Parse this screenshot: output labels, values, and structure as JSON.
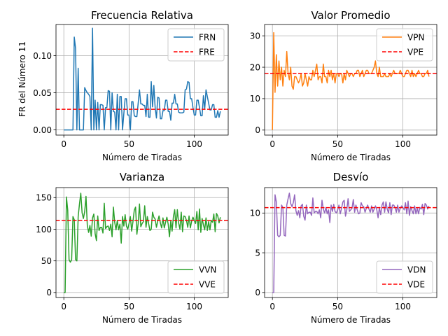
{
  "chart_data": [
    {
      "type": "line",
      "title": "Frecuencia Relativa",
      "xlabel": "Número de Tiradas",
      "ylabel": "FR del Número 11",
      "xlim": [
        -6,
        126
      ],
      "ylim": [
        -0.007,
        0.142
      ],
      "xticks": [
        0,
        50,
        100
      ],
      "yticks": [
        0.0,
        0.05,
        0.1
      ],
      "ytick_labels": [
        "0.00",
        "0.05",
        "0.10"
      ],
      "grid": true,
      "legend_position": "top-right",
      "series": [
        {
          "name": "FRN",
          "color": "#1f77b4",
          "style": "solid",
          "x": [
            0,
            1,
            2,
            3,
            4,
            5,
            6,
            7,
            8,
            9,
            10,
            11,
            12,
            13,
            14,
            15,
            16,
            17,
            18,
            19,
            20,
            21,
            22,
            23,
            24,
            25,
            26,
            27,
            28,
            29,
            30,
            31,
            32,
            33,
            34,
            35,
            36,
            37,
            38,
            39,
            40,
            41,
            42,
            43,
            44,
            45,
            46,
            47,
            48,
            49,
            50,
            51,
            52,
            53,
            54,
            55,
            56,
            57,
            58,
            59,
            60,
            61,
            62,
            63,
            64,
            65,
            66,
            67,
            68,
            69,
            70,
            71,
            72,
            73,
            74,
            75,
            76,
            77,
            78,
            79,
            80,
            81,
            82,
            83,
            84,
            85,
            86,
            87,
            88,
            89,
            90,
            91,
            92,
            93,
            94,
            95,
            96,
            97,
            98,
            99,
            100,
            101,
            102,
            103,
            104,
            105,
            106,
            107,
            108,
            109,
            110,
            111,
            112,
            113,
            114,
            115,
            116,
            117,
            118,
            119,
            120
          ],
          "values": [
            0,
            0,
            0,
            0,
            0,
            0,
            0,
            0,
            0.125,
            0.11,
            0,
            0.083,
            0,
            0,
            0,
            0,
            0.057,
            0.053,
            0.05,
            0.048,
            0.045,
            0,
            0.137,
            0,
            0.04,
            0,
            0.037,
            0,
            0.034,
            0.034,
            0.033,
            0,
            0.03,
            0.03,
            0.053,
            0.052,
            0,
            0.05,
            0.025,
            0.024,
            0,
            0.048,
            0,
            0.045,
            0.045,
            0,
            0.022,
            0.042,
            0.042,
            0.02,
            0.02,
            0,
            0.038,
            0.038,
            0.019,
            0.018,
            0.018,
            0.036,
            0.054,
            0.035,
            0.035,
            0.033,
            0.033,
            0.018,
            0.048,
            0.017,
            0.017,
            0.065,
            0.031,
            0.06,
            0.03,
            0.016,
            0.044,
            0.043,
            0.015,
            0.015,
            0.026,
            0.026,
            0.04,
            0.04,
            0.025,
            0.025,
            0.013,
            0.036,
            0.036,
            0.048,
            0.035,
            0.035,
            0.024,
            0.023,
            0.023,
            0.023,
            0.024,
            0.054,
            0.055,
            0.065,
            0.064,
            0.042,
            0.042,
            0.03,
            0.02,
            0.02,
            0.04,
            0.04,
            0.03,
            0.019,
            0.019,
            0.046,
            0.028,
            0.054,
            0.045,
            0.036,
            0.027,
            0.027,
            0.034,
            0.034,
            0.017,
            0.017,
            0.026,
            0.017,
            0.025
          ],
          "hline": null
        },
        {
          "name": "FRE",
          "color": "#ff0000",
          "style": "dashed",
          "hline": 0.0278
        }
      ]
    },
    {
      "type": "line",
      "title": "Valor Promedio",
      "xlabel": "Número de Tiradas",
      "ylabel": "",
      "xlim": [
        -6,
        126
      ],
      "ylim": [
        -1.6,
        33.6
      ],
      "xticks": [
        0,
        50,
        100
      ],
      "yticks": [
        0,
        10,
        20,
        30
      ],
      "ytick_labels": [
        "0",
        "10",
        "20",
        "30"
      ],
      "grid": true,
      "legend_position": "top-right",
      "series": [
        {
          "name": "VPN",
          "color": "#ff7f0e",
          "style": "solid",
          "x": [
            0,
            1,
            2,
            3,
            4,
            5,
            6,
            7,
            8,
            9,
            10,
            11,
            12,
            13,
            14,
            15,
            16,
            17,
            18,
            19,
            20,
            21,
            22,
            23,
            24,
            25,
            26,
            27,
            28,
            29,
            30,
            31,
            32,
            33,
            34,
            35,
            36,
            37,
            38,
            39,
            40,
            41,
            42,
            43,
            44,
            45,
            46,
            47,
            48,
            49,
            50,
            51,
            52,
            53,
            54,
            55,
            56,
            57,
            58,
            59,
            60,
            61,
            62,
            63,
            64,
            65,
            66,
            67,
            68,
            69,
            70,
            71,
            72,
            73,
            74,
            75,
            76,
            77,
            78,
            79,
            80,
            81,
            82,
            83,
            84,
            85,
            86,
            87,
            88,
            89,
            90,
            91,
            92,
            93,
            94,
            95,
            96,
            97,
            98,
            99,
            100,
            101,
            102,
            103,
            104,
            105,
            106,
            107,
            108,
            109,
            110,
            111,
            112,
            113,
            114,
            115,
            116,
            117,
            118,
            119,
            120
          ],
          "values": [
            0,
            31,
            12,
            24,
            14,
            22,
            16,
            20,
            14,
            19,
            17,
            25,
            18,
            16,
            20,
            14,
            13,
            17,
            17,
            16,
            15,
            16,
            18,
            14,
            15,
            18,
            16,
            14,
            17,
            16,
            16,
            19,
            17,
            19,
            21,
            16,
            17,
            17,
            15,
            21,
            17,
            17,
            15,
            19,
            17,
            19,
            16,
            18,
            15,
            18,
            18,
            17,
            18,
            18,
            15,
            18,
            16,
            19,
            18,
            17,
            18,
            18,
            17,
            18,
            18,
            19,
            19,
            17,
            18,
            19,
            17,
            18,
            19,
            19,
            18,
            18,
            18,
            19,
            20,
            22,
            18,
            17,
            20,
            17,
            17,
            17,
            18,
            17,
            17,
            17,
            18,
            17,
            18,
            19,
            18,
            18,
            18,
            18,
            19,
            18,
            17,
            17,
            18,
            19,
            19,
            18,
            17,
            19,
            17,
            18,
            17,
            18,
            19,
            18,
            18,
            17,
            17,
            18,
            18,
            19,
            17
          ],
          "hline": null
        },
        {
          "name": "VPE",
          "color": "#ff0000",
          "style": "dashed",
          "hline": 18
        }
      ]
    },
    {
      "type": "line",
      "title": "Varianza",
      "xlabel": "Número de Tiradas",
      "ylabel": "",
      "xlim": [
        -6,
        126
      ],
      "ylim": [
        -7.9,
        165.8
      ],
      "xticks": [
        0,
        50,
        100
      ],
      "yticks": [
        0,
        50,
        100,
        150
      ],
      "ytick_labels": [
        "0",
        "50",
        "100",
        "150"
      ],
      "grid": true,
      "legend_position": "bottom-right",
      "series": [
        {
          "name": "VVN",
          "color": "#2ca02c",
          "style": "solid",
          "x": [
            0,
            1,
            2,
            3,
            4,
            5,
            6,
            7,
            8,
            9,
            10,
            11,
            12,
            13,
            14,
            15,
            16,
            17,
            18,
            19,
            20,
            21,
            22,
            23,
            24,
            25,
            26,
            27,
            28,
            29,
            30,
            31,
            32,
            33,
            34,
            35,
            36,
            37,
            38,
            39,
            40,
            41,
            42,
            43,
            44,
            45,
            46,
            47,
            48,
            49,
            50,
            51,
            52,
            53,
            54,
            55,
            56,
            57,
            58,
            59,
            60,
            61,
            62,
            63,
            64,
            65,
            66,
            67,
            68,
            69,
            70,
            71,
            72,
            73,
            74,
            75,
            76,
            77,
            78,
            79,
            80,
            81,
            82,
            83,
            84,
            85,
            86,
            87,
            88,
            89,
            90,
            91,
            92,
            93,
            94,
            95,
            96,
            97,
            98,
            99,
            100,
            101,
            102,
            103,
            104,
            105,
            106,
            107,
            108,
            109,
            110,
            111,
            112,
            113,
            114,
            115,
            116,
            117,
            118,
            119,
            120
          ],
          "values": [
            0,
            0,
            151,
            130,
            52,
            48,
            52,
            120,
            115,
            52,
            50,
            120,
            140,
            157,
            126,
            117,
            128,
            152,
            106,
            95,
            106,
            89,
            118,
            124,
            93,
            82,
            121,
            98,
            103,
            103,
            94,
            141,
            101,
            104,
            105,
            98,
            108,
            88,
            135,
            111,
            99,
            114,
            99,
            108,
            78,
            120,
            105,
            123,
            105,
            100,
            109,
            120,
            97,
            112,
            130,
            135,
            92,
            109,
            140,
            104,
            109,
            112,
            137,
            103,
            120,
            109,
            98,
            100,
            127,
            119,
            116,
            103,
            113,
            121,
            110,
            102,
            118,
            102,
            111,
            119,
            108,
            88,
            114,
            97,
            120,
            131,
            102,
            131,
            110,
            100,
            127,
            96,
            121,
            120,
            114,
            103,
            121,
            102,
            113,
            119,
            114,
            109,
            128,
            99,
            132,
            95,
            117,
            107,
            99,
            118,
            98,
            112,
            99,
            114,
            111,
            124,
            96,
            125,
            121,
            110,
            119
          ],
          "hline": null
        },
        {
          "name": "VVE",
          "color": "#ff0000",
          "style": "dashed",
          "hline": 114
        }
      ]
    },
    {
      "type": "line",
      "title": "Desvío",
      "xlabel": "Número de Tiradas",
      "ylabel": "",
      "xlim": [
        -6,
        126
      ],
      "ylim": [
        -0.63,
        13.2
      ],
      "xticks": [
        0,
        50,
        100
      ],
      "yticks": [
        0,
        5,
        10
      ],
      "ytick_labels": [
        "0",
        "5",
        "10"
      ],
      "grid": true,
      "legend_position": "bottom-right",
      "series": [
        {
          "name": "VDN",
          "color": "#9467bd",
          "style": "solid",
          "x": [
            0,
            1,
            2,
            3,
            4,
            5,
            6,
            7,
            8,
            9,
            10,
            11,
            12,
            13,
            14,
            15,
            16,
            17,
            18,
            19,
            20,
            21,
            22,
            23,
            24,
            25,
            26,
            27,
            28,
            29,
            30,
            31,
            32,
            33,
            34,
            35,
            36,
            37,
            38,
            39,
            40,
            41,
            42,
            43,
            44,
            45,
            46,
            47,
            48,
            49,
            50,
            51,
            52,
            53,
            54,
            55,
            56,
            57,
            58,
            59,
            60,
            61,
            62,
            63,
            64,
            65,
            66,
            67,
            68,
            69,
            70,
            71,
            72,
            73,
            74,
            75,
            76,
            77,
            78,
            79,
            80,
            81,
            82,
            83,
            84,
            85,
            86,
            87,
            88,
            89,
            90,
            91,
            92,
            93,
            94,
            95,
            96,
            97,
            98,
            99,
            100,
            101,
            102,
            103,
            104,
            105,
            106,
            107,
            108,
            109,
            110,
            111,
            112,
            113,
            114,
            115,
            116,
            117,
            118,
            119,
            120
          ],
          "values": [
            0,
            0,
            12.3,
            11.4,
            7.2,
            7.0,
            7.2,
            11,
            10.7,
            7.2,
            7.1,
            11,
            11.8,
            12.5,
            11.2,
            10.8,
            11.3,
            12.3,
            10.3,
            9.7,
            10.3,
            9.4,
            10.9,
            11.1,
            9.6,
            9.1,
            11,
            9.9,
            10.1,
            10.1,
            9.7,
            11.9,
            10,
            10.2,
            10.2,
            9.9,
            10.4,
            9.4,
            11.6,
            10.5,
            10,
            10.7,
            9.9,
            10.4,
            8.8,
            11,
            10.2,
            11.1,
            10.2,
            10,
            10.4,
            11,
            9.9,
            10.6,
            11.4,
            11.6,
            9.6,
            10.4,
            11.8,
            10.2,
            10.4,
            10.6,
            11.7,
            10.1,
            11,
            10.4,
            9.9,
            10,
            11.3,
            10.9,
            10.8,
            10.1,
            10.6,
            11,
            10.5,
            10.1,
            10.9,
            10.1,
            10.5,
            10.9,
            10.4,
            9.4,
            10.7,
            9.8,
            11,
            11.4,
            10.1,
            11.4,
            10.5,
            10,
            11.3,
            9.8,
            11,
            11,
            10.7,
            10.1,
            11,
            10.1,
            10.6,
            10.9,
            10.7,
            10.4,
            11.3,
            9.9,
            11.5,
            9.7,
            10.8,
            10.3,
            9.9,
            10.9,
            9.9,
            10.6,
            9.9,
            10.7,
            10.5,
            11.1,
            9.8,
            11.2,
            11,
            10.5,
            10.9
          ],
          "hline": null
        },
        {
          "name": "VDE",
          "color": "#ff0000",
          "style": "dashed",
          "hline": 10.68
        }
      ]
    }
  ]
}
